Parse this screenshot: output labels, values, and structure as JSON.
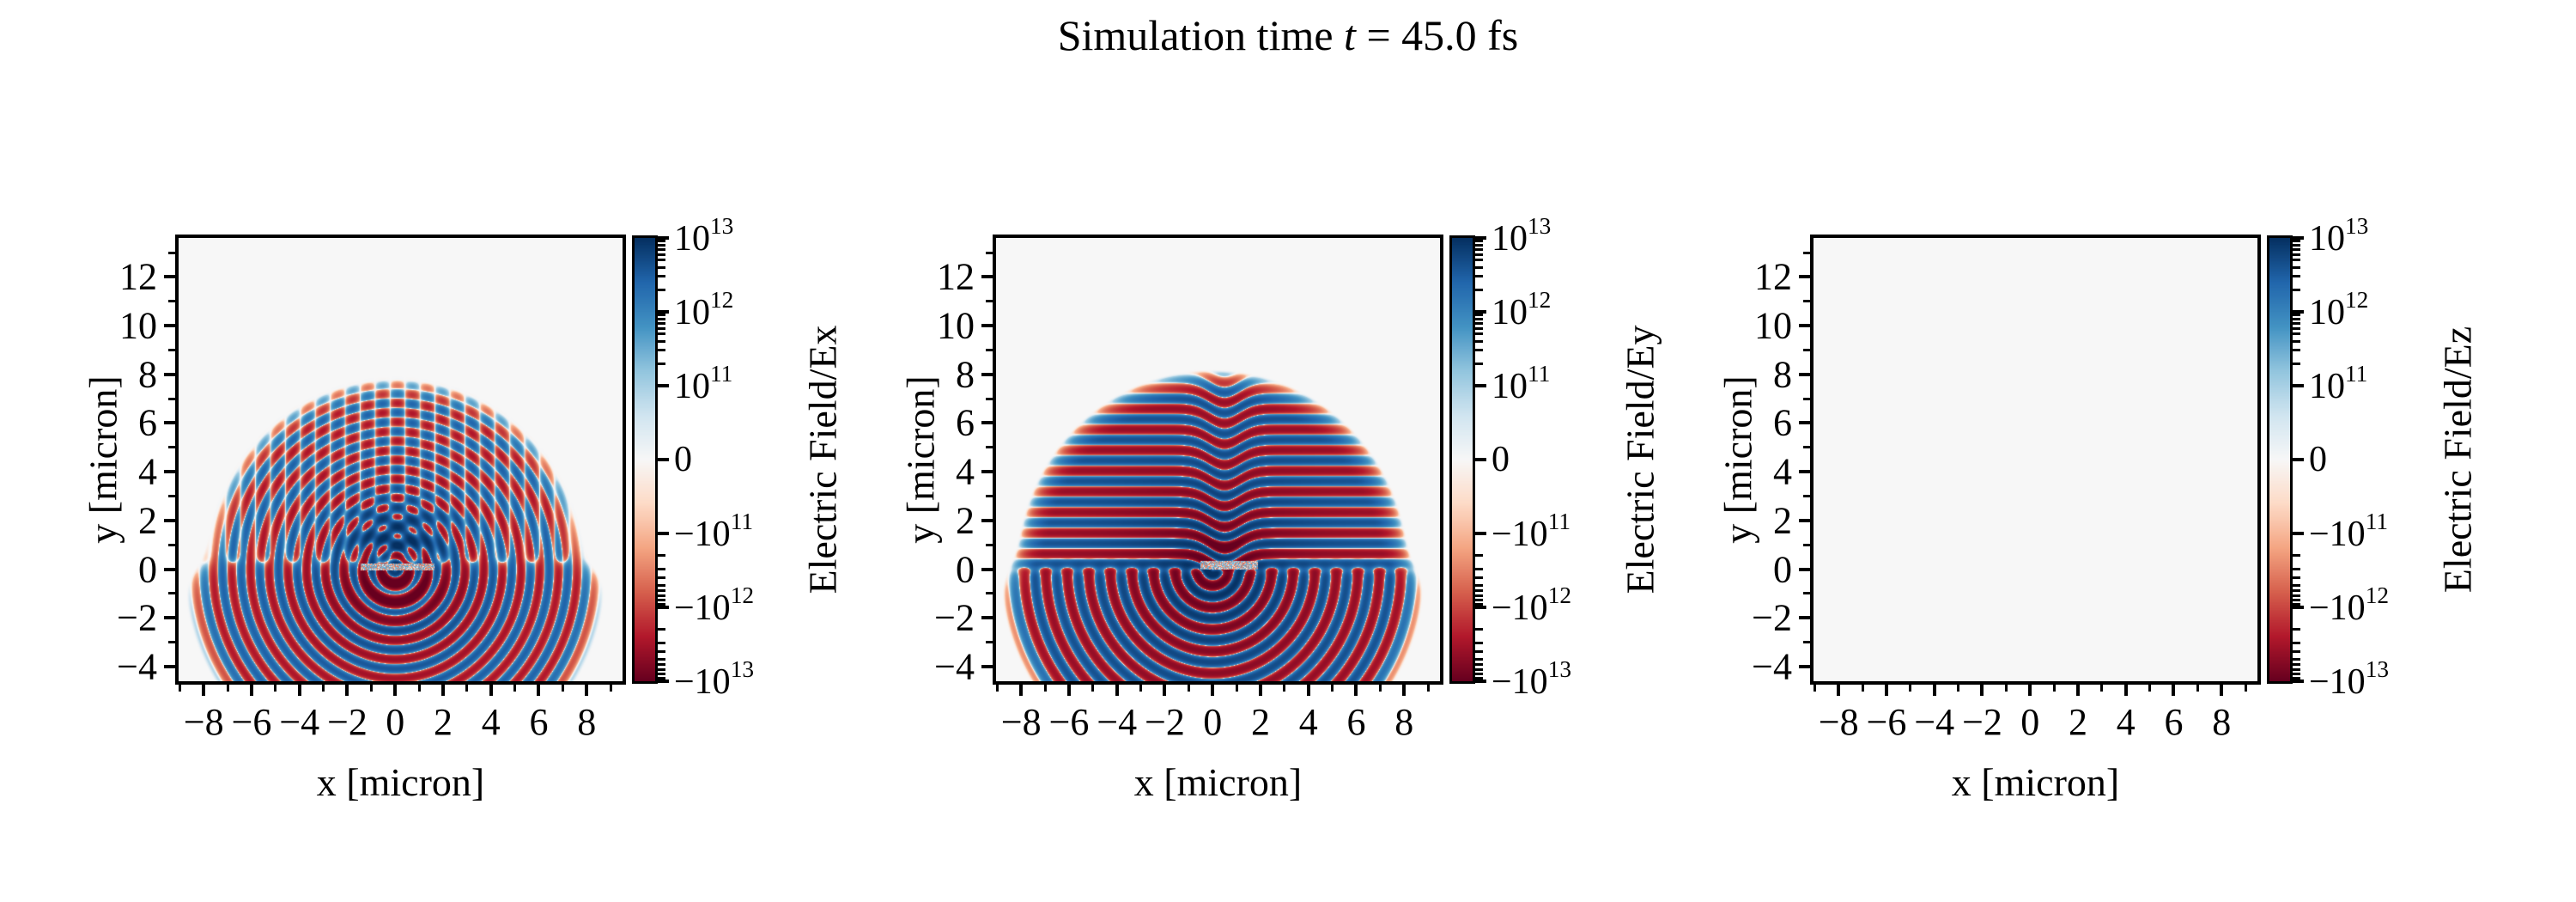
{
  "title": {
    "full": "Simulation time t = 45.0 fs",
    "pre": "Simulation time ",
    "var": "t",
    "post": " = 45.0 fs"
  },
  "figure": {
    "background": "#ffffff",
    "frame_color": "#000000",
    "zero_field_color": "#f7f7f7"
  },
  "chart_data": {
    "type": "heatmap",
    "layout_hint": "three square pseudocolor panels side by side, each with its own symlog colorbar on the right",
    "shared_axes": {
      "xlabel": "x [micron]",
      "ylabel": "y [micron]",
      "xlim": [
        -9.05,
        9.5
      ],
      "ylim": [
        -4.6,
        13.6
      ],
      "xticks": [
        -8,
        -6,
        -4,
        -2,
        0,
        2,
        4,
        6,
        8
      ],
      "xticklabels": [
        "−8",
        "−6",
        "−4",
        "−2",
        "0",
        "2",
        "4",
        "6",
        "8"
      ],
      "xminorticks": [
        -9,
        -7,
        -5,
        -3,
        -1,
        1,
        3,
        5,
        7,
        9
      ],
      "yticks": [
        12,
        10,
        8,
        6,
        4,
        2,
        0,
        -2,
        -4
      ],
      "yticklabels": [
        "12",
        "10",
        "8",
        "6",
        "4",
        "2",
        "0",
        "−2",
        "−4"
      ],
      "yminorticks": [
        13,
        11,
        9,
        7,
        5,
        3,
        1,
        -1,
        -3
      ]
    },
    "colorbar": {
      "scale": "symlog",
      "linthresh": 100000000000.0,
      "vmin": -10000000000000.0,
      "vmax": 10000000000000.0,
      "cmap": "RdBu_r",
      "cmap_anchors_low_to_high": [
        "#67001f",
        "#b2182b",
        "#d6604d",
        "#f4a582",
        "#fddbc7",
        "#f7f7f7",
        "#d1e5f0",
        "#92c5de",
        "#4393c3",
        "#2166ac",
        "#053061"
      ],
      "tick_values": [
        10000000000000.0,
        1000000000000.0,
        100000000000.0,
        0,
        -100000000000.0,
        -1000000000000.0,
        -10000000000000.0
      ],
      "ticklabels": [
        {
          "base": "10",
          "exp": "13"
        },
        {
          "base": "10",
          "exp": "12"
        },
        {
          "base": "10",
          "exp": "11"
        },
        {
          "base": "0",
          "exp": ""
        },
        {
          "base": "−10",
          "exp": "11"
        },
        {
          "base": "−10",
          "exp": "12"
        },
        {
          "base": "−10",
          "exp": "13"
        }
      ]
    },
    "panels": [
      {
        "name": "Ex",
        "colorbar_label": "Electric Field/Ex",
        "description": "Concentric red/blue ring waves radiating from a thin speckled target bar at the origin; rings break into dashed arcs above the bar; deep blue lobe just above the bar and deep red lobe just below it; field fades out near radius 8.",
        "model": {
          "kind": "rings_dipole",
          "ring_period": 0.78,
          "upper_dash_period": 1.25,
          "blend_y": 0.28,
          "env_r_upper": 7.6,
          "env_r_lower": 8.55,
          "amp_core": 9000000000000.0,
          "core_decay": 2.1,
          "amp_base": 2300000000000.0,
          "blobs": [
            {
              "x0": 0.1,
              "y0": 1.3,
              "sx": 1.8,
              "sy": 1.1,
              "amp": 5000000000000.0
            },
            {
              "x0": 0.1,
              "y0": -0.85,
              "sx": 1.7,
              "sy": 0.95,
              "amp": -7000000000000.0
            }
          ],
          "bar": {
            "x0": 0.1,
            "half_width": 1.55,
            "y_bottom": -0.05,
            "y_top": 0.22,
            "amp": 500000000000.0
          }
        }
      },
      {
        "name": "Ey",
        "colorbar_label": "Electric Field/Ey",
        "description": "Strong horizontal standing-wave stripes above the target bar (chevron-bent near x≈0.5) and dense concentric半 arcs below it; speckled target patch right of origin; field fades out near radius 8.",
        "model": {
          "kind": "stripes_rings",
          "stripe_period": 0.85,
          "stripe_phase": 0.0,
          "warp_amp": 0.6,
          "warp_x0": 0.5,
          "warp_sx": 0.9,
          "ring_period": 0.9,
          "ring_phase": 0.0,
          "blend_y": 0.0,
          "env_r_upper": 7.9,
          "env_r_lower": 8.6,
          "amp_core": 9000000000000.0,
          "core_decay": 2.4,
          "amp_base": 3600000000000.0,
          "blobs": [
            {
              "x0": 0.6,
              "y0": 0.8,
              "sx": 1.1,
              "sy": 0.5,
              "amp": -4000000000000.0
            }
          ],
          "bar": {
            "x0": 0.7,
            "half_width": 1.2,
            "y_bottom": 0.0,
            "y_top": 0.35,
            "amp": 500000000000.0
          }
        }
      },
      {
        "name": "Ez",
        "colorbar_label": "Electric Field/Ez",
        "description": "Uniform zero field (flat near-white panel).",
        "model": {
          "kind": "zero"
        }
      }
    ]
  }
}
